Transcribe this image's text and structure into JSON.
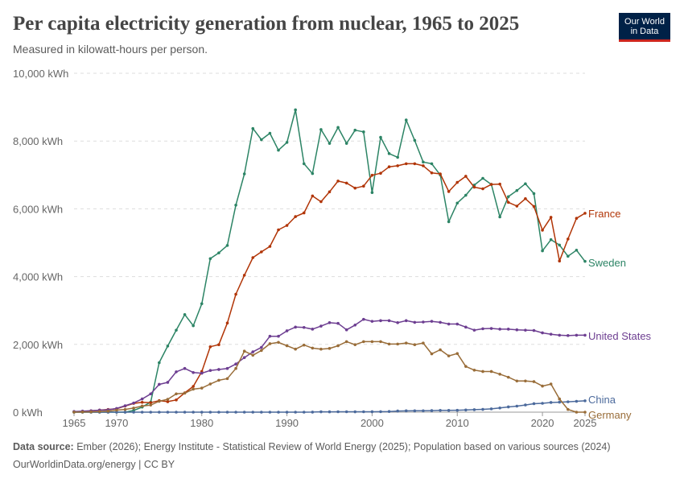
{
  "header": {
    "title": "Per capita electricity generation from nuclear, 1965 to 2025",
    "subtitle": "Measured in kilowatt-hours per person.",
    "logo_line1": "Our World",
    "logo_line2": "in Data"
  },
  "footer": {
    "source_label": "Data source:",
    "source_text": "Ember (2026); Energy Institute - Statistical Review of World Energy (2025); Population based on various sources (2024)",
    "link": "OurWorldinData.org/energy",
    "license": "| CC BY"
  },
  "colors": {
    "France": "#b13507",
    "Sweden": "#2c8465",
    "United States": "#6d3e91",
    "China": "#4c6a9c",
    "Germany": "#996d39",
    "grid": "#dddddd",
    "axis_text": "#666666"
  },
  "chart_data": {
    "type": "line",
    "title": "Per capita electricity generation from nuclear, 1965 to 2025",
    "ylabel": "kWh",
    "ylim": [
      0,
      10000
    ],
    "xlim": [
      1965,
      2025
    ],
    "y_ticks": [
      "0 kWh",
      "2,000 kWh",
      "4,000 kWh",
      "6,000 kWh",
      "8,000 kWh",
      "10,000 kWh"
    ],
    "x_ticks": [
      "1965",
      "1970",
      "1980",
      "1990",
      "2000",
      "2010",
      "2020",
      "2025"
    ],
    "grid": true,
    "legend": "right-end labels",
    "series": [
      {
        "name": "Sweden",
        "x": [
          1965,
          1966,
          1967,
          1968,
          1969,
          1970,
          1971,
          1972,
          1973,
          1974,
          1975,
          1976,
          1977,
          1978,
          1979,
          1980,
          1981,
          1982,
          1983,
          1984,
          1985,
          1986,
          1987,
          1988,
          1989,
          1990,
          1991,
          1992,
          1993,
          1994,
          1995,
          1996,
          1997,
          1998,
          1999,
          2000,
          2001,
          2002,
          2003,
          2004,
          2005,
          2006,
          2007,
          2008,
          2009,
          2010,
          2011,
          2012,
          2013,
          2014,
          2015,
          2016,
          2017,
          2018,
          2019,
          2020,
          2021,
          2022,
          2023,
          2024,
          2025
        ],
        "y": [
          0,
          0,
          0,
          0,
          0,
          0,
          0,
          50,
          150,
          300,
          1460,
          1950,
          2420,
          2880,
          2550,
          3200,
          4530,
          4700,
          4920,
          6110,
          7030,
          8370,
          8040,
          8230,
          7730,
          7960,
          8920,
          7330,
          7040,
          8340,
          7930,
          8400,
          7930,
          8320,
          8270,
          6480,
          8110,
          7630,
          7520,
          8620,
          8020,
          7380,
          7330,
          7000,
          5620,
          6170,
          6400,
          6700,
          6900,
          6720,
          5760,
          6360,
          6540,
          6740,
          6450,
          4760,
          5090,
          4930,
          4600,
          4780,
          4450
        ]
      },
      {
        "name": "France",
        "x": [
          1965,
          1966,
          1967,
          1968,
          1969,
          1970,
          1971,
          1972,
          1973,
          1974,
          1975,
          1976,
          1977,
          1978,
          1979,
          1980,
          1981,
          1982,
          1983,
          1984,
          1985,
          1986,
          1987,
          1988,
          1989,
          1990,
          1991,
          1992,
          1993,
          1994,
          1995,
          1996,
          1997,
          1998,
          1999,
          2000,
          2001,
          2002,
          2003,
          2004,
          2005,
          2006,
          2007,
          2008,
          2009,
          2010,
          2011,
          2012,
          2013,
          2014,
          2015,
          2016,
          2017,
          2018,
          2019,
          2020,
          2021,
          2022,
          2023,
          2024,
          2025
        ],
        "y": [
          15,
          20,
          40,
          60,
          80,
          100,
          180,
          260,
          290,
          280,
          340,
          310,
          360,
          570,
          760,
          1200,
          1930,
          1990,
          2630,
          3480,
          4040,
          4560,
          4730,
          4890,
          5380,
          5510,
          5770,
          5880,
          6380,
          6210,
          6500,
          6820,
          6760,
          6610,
          6670,
          6990,
          7050,
          7240,
          7270,
          7330,
          7330,
          7270,
          7060,
          7030,
          6510,
          6780,
          6960,
          6640,
          6590,
          6720,
          6730,
          6190,
          6080,
          6300,
          6070,
          5370,
          5750,
          4460,
          5110,
          5720,
          5870
        ]
      },
      {
        "name": "United States",
        "x": [
          1965,
          1966,
          1967,
          1968,
          1969,
          1970,
          1971,
          1972,
          1973,
          1974,
          1975,
          1976,
          1977,
          1978,
          1979,
          1980,
          1981,
          1982,
          1983,
          1984,
          1985,
          1986,
          1987,
          1988,
          1989,
          1990,
          1991,
          1992,
          1993,
          1994,
          1995,
          1996,
          1997,
          1998,
          1999,
          2000,
          2001,
          2002,
          2003,
          2004,
          2005,
          2006,
          2007,
          2008,
          2009,
          2010,
          2011,
          2012,
          2013,
          2014,
          2015,
          2016,
          2017,
          2018,
          2019,
          2020,
          2021,
          2022,
          2023,
          2024,
          2025
        ],
        "y": [
          20,
          30,
          40,
          60,
          70,
          110,
          190,
          270,
          390,
          540,
          820,
          880,
          1190,
          1290,
          1170,
          1150,
          1230,
          1260,
          1290,
          1420,
          1610,
          1780,
          1910,
          2240,
          2240,
          2400,
          2510,
          2500,
          2450,
          2540,
          2640,
          2620,
          2430,
          2570,
          2740,
          2680,
          2700,
          2700,
          2640,
          2700,
          2650,
          2660,
          2680,
          2650,
          2600,
          2600,
          2510,
          2420,
          2460,
          2470,
          2450,
          2450,
          2430,
          2420,
          2410,
          2340,
          2300,
          2270,
          2260,
          2270,
          2270
        ]
      },
      {
        "name": "China",
        "x": [
          1965,
          1966,
          1967,
          1968,
          1969,
          1970,
          1971,
          1972,
          1973,
          1974,
          1975,
          1976,
          1977,
          1978,
          1979,
          1980,
          1981,
          1982,
          1983,
          1984,
          1985,
          1986,
          1987,
          1988,
          1989,
          1990,
          1991,
          1992,
          1993,
          1994,
          1995,
          1996,
          1997,
          1998,
          1999,
          2000,
          2001,
          2002,
          2003,
          2004,
          2005,
          2006,
          2007,
          2008,
          2009,
          2010,
          2011,
          2012,
          2013,
          2014,
          2015,
          2016,
          2017,
          2018,
          2019,
          2020,
          2021,
          2022,
          2023,
          2024,
          2025
        ],
        "y": [
          0,
          0,
          0,
          0,
          0,
          0,
          0,
          0,
          0,
          0,
          0,
          0,
          0,
          0,
          0,
          0,
          0,
          0,
          0,
          0,
          0,
          0,
          0,
          0,
          0,
          0,
          0,
          0,
          2,
          11,
          10,
          12,
          12,
          11,
          12,
          13,
          14,
          20,
          33,
          39,
          40,
          41,
          46,
          52,
          53,
          56,
          65,
          73,
          82,
          98,
          125,
          155,
          178,
          212,
          250,
          261,
          286,
          295,
          306,
          320,
          335
        ]
      },
      {
        "name": "Germany",
        "x": [
          1965,
          1966,
          1967,
          1968,
          1969,
          1970,
          1971,
          1972,
          1973,
          1974,
          1975,
          1976,
          1977,
          1978,
          1979,
          1980,
          1981,
          1982,
          1983,
          1984,
          1985,
          1986,
          1987,
          1988,
          1989,
          1990,
          1991,
          1992,
          1993,
          1994,
          1995,
          1996,
          1997,
          1998,
          1999,
          2000,
          2001,
          2002,
          2003,
          2004,
          2005,
          2006,
          2007,
          2008,
          2009,
          2010,
          2011,
          2012,
          2013,
          2014,
          2015,
          2016,
          2017,
          2018,
          2019,
          2020,
          2021,
          2022,
          2023,
          2024,
          2025
        ],
        "y": [
          0,
          5,
          10,
          20,
          30,
          60,
          80,
          120,
          180,
          210,
          320,
          380,
          540,
          560,
          680,
          710,
          830,
          940,
          990,
          1290,
          1800,
          1680,
          1820,
          2020,
          2060,
          1960,
          1860,
          1980,
          1890,
          1860,
          1880,
          1960,
          2080,
          1990,
          2080,
          2080,
          2080,
          2010,
          2010,
          2040,
          1990,
          2040,
          1720,
          1840,
          1660,
          1730,
          1350,
          1240,
          1200,
          1200,
          1120,
          1030,
          920,
          920,
          900,
          770,
          830,
          390,
          80,
          0,
          0
        ]
      }
    ]
  }
}
